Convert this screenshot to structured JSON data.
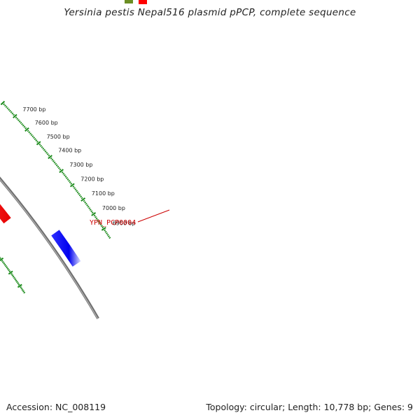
{
  "title": "Yersinia pestis Nepal516 plasmid pPCP, complete sequence",
  "footer": {
    "accession": "Accession: NC_008119",
    "summary": "Topology: circular; Length: 10,778 bp; Genes: 9"
  },
  "colors": {
    "backbone": "#8c8c8c",
    "scale_ticks": "#1a8a1a",
    "gene_forward": "#ff0000",
    "gene_reverse": "#0000ff",
    "gene_other": "#6b8e23",
    "label_text": "#cc0000"
  },
  "tick_labels": [
    {
      "bp": 7700,
      "label": "7700 bp"
    },
    {
      "bp": 7600,
      "label": "7600 bp"
    },
    {
      "bp": 7500,
      "label": "7500 bp"
    },
    {
      "bp": 7400,
      "label": "7400 bp"
    },
    {
      "bp": 7300,
      "label": "7300 bp"
    },
    {
      "bp": 7200,
      "label": "7200 bp"
    },
    {
      "bp": 7100,
      "label": "7100 bp"
    },
    {
      "bp": 7000,
      "label": "7000 bp"
    },
    {
      "bp": 6900,
      "label": "6900 bp"
    }
  ],
  "features": [
    {
      "name": "YPN_PCP0004",
      "strand": "forward",
      "color": "#ff0000",
      "labeled": true
    },
    {
      "name": "",
      "strand": "reverse",
      "color": "#0000ff",
      "labeled": false
    },
    {
      "name": "",
      "strand": "forward",
      "color": "#ff0000",
      "labeled": false
    },
    {
      "name": "",
      "strand": "forward",
      "color": "#6b8e23",
      "labeled": false
    }
  ]
}
